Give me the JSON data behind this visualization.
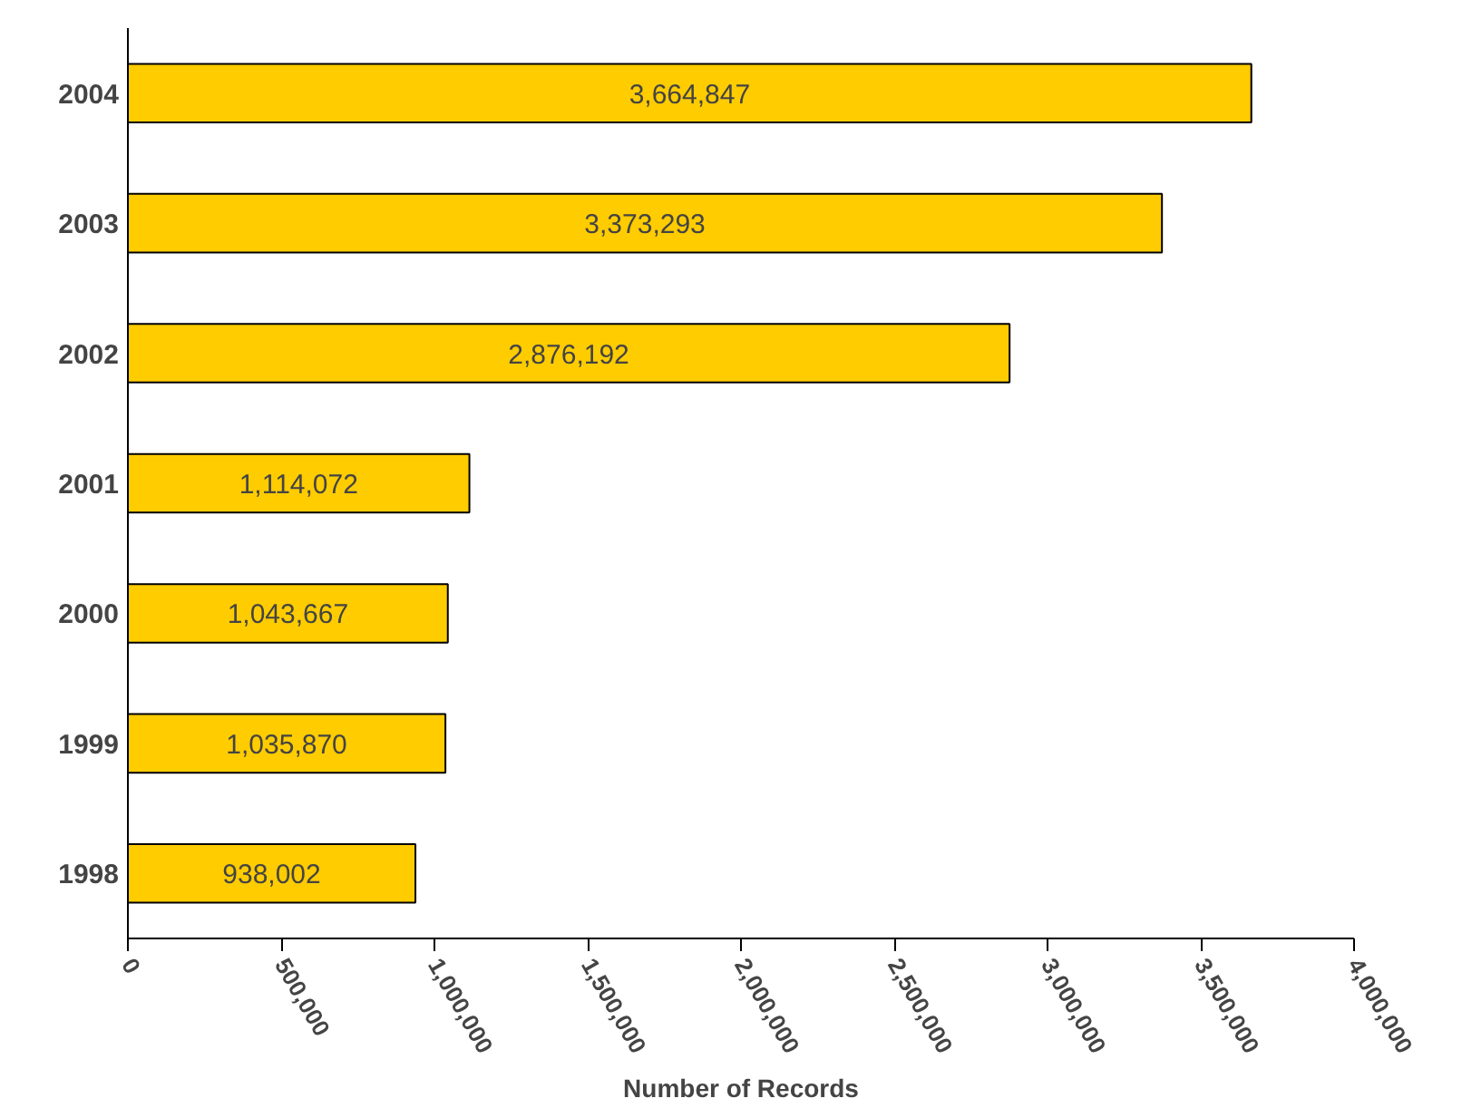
{
  "chart_data": {
    "type": "bar",
    "orientation": "horizontal",
    "xlabel": "Number of Records",
    "categories": [
      "2004",
      "2003",
      "2002",
      "2001",
      "2000",
      "1999",
      "1998"
    ],
    "values": [
      3664847,
      3373293,
      2876192,
      1114072,
      1043667,
      1035870,
      938002
    ],
    "value_labels": [
      "3,664,847",
      "3,373,293",
      "2,876,192",
      "1,114,072",
      "1,043,667",
      "1,035,870",
      "938,002"
    ],
    "color": "#ffcc00",
    "grid": false,
    "xlim": [
      0,
      4000000
    ],
    "xticks": [
      {
        "value": 0,
        "label": "0"
      },
      {
        "value": 500000,
        "label": "500,000"
      },
      {
        "value": 1000000,
        "label": "1,000,000"
      },
      {
        "value": 1500000,
        "label": "1,500,000"
      },
      {
        "value": 2000000,
        "label": "2,000,000"
      },
      {
        "value": 2500000,
        "label": "2,500,000"
      },
      {
        "value": 3000000,
        "label": "3,000,000"
      },
      {
        "value": 3500000,
        "label": "3,500,000"
      },
      {
        "value": 4000000,
        "label": "4,000,000"
      }
    ]
  }
}
